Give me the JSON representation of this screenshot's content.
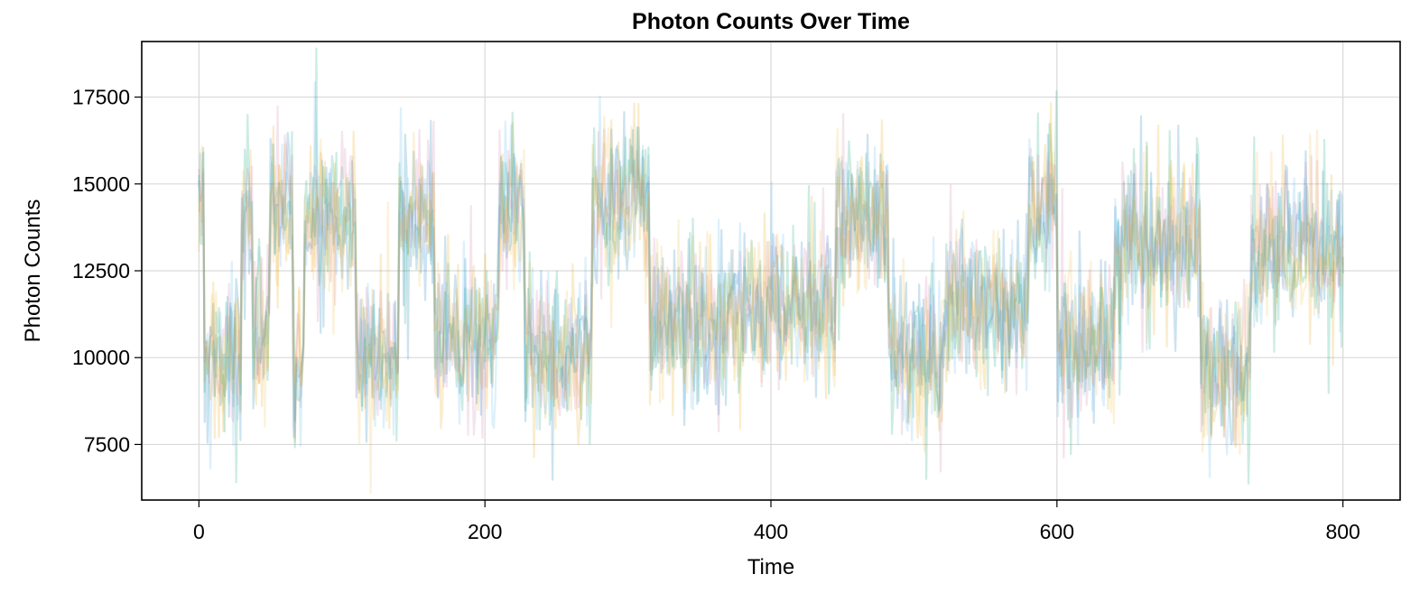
{
  "chart_data": {
    "type": "line",
    "title": "Photon Counts Over Time",
    "xlabel": "Time",
    "ylabel": "Photon Counts",
    "xlim": [
      -40,
      840
    ],
    "ylim": [
      5900,
      19100
    ],
    "xticks": [
      0,
      200,
      400,
      600,
      800
    ],
    "yticks": [
      7500,
      10000,
      12500,
      15000,
      17500
    ],
    "xtick_labels": [
      "0",
      "200",
      "400",
      "600",
      "800"
    ],
    "ytick_labels": [
      "7500",
      "10000",
      "12500",
      "15000",
      "17500"
    ],
    "grid": true,
    "legend": "none",
    "x_range": [
      0,
      800
    ],
    "n_points_per_series": 800,
    "noise_sd": 1150,
    "series_colors": [
      "#0072b2",
      "#e69f00",
      "#009e73",
      "#cc79a7",
      "#56b4e9",
      "#f0b942"
    ],
    "series_count": 6,
    "mean_levels": [
      {
        "start": 0,
        "end": 4,
        "level": 15000
      },
      {
        "start": 4,
        "end": 30,
        "level": 10000
      },
      {
        "start": 30,
        "end": 38,
        "level": 14000
      },
      {
        "start": 38,
        "end": 50,
        "level": 10500
      },
      {
        "start": 50,
        "end": 66,
        "level": 14500
      },
      {
        "start": 66,
        "end": 74,
        "level": 10000
      },
      {
        "start": 74,
        "end": 110,
        "level": 14000
      },
      {
        "start": 110,
        "end": 140,
        "level": 10000
      },
      {
        "start": 140,
        "end": 165,
        "level": 14000
      },
      {
        "start": 165,
        "end": 210,
        "level": 10500
      },
      {
        "start": 210,
        "end": 228,
        "level": 14500
      },
      {
        "start": 228,
        "end": 275,
        "level": 10000
      },
      {
        "start": 275,
        "end": 315,
        "level": 14500
      },
      {
        "start": 315,
        "end": 370,
        "level": 11000
      },
      {
        "start": 370,
        "end": 445,
        "level": 11500
      },
      {
        "start": 445,
        "end": 482,
        "level": 14000
      },
      {
        "start": 482,
        "end": 520,
        "level": 10000
      },
      {
        "start": 520,
        "end": 580,
        "level": 11500
      },
      {
        "start": 580,
        "end": 600,
        "level": 14500
      },
      {
        "start": 600,
        "end": 640,
        "level": 10500
      },
      {
        "start": 640,
        "end": 700,
        "level": 13500
      },
      {
        "start": 700,
        "end": 735,
        "level": 9500
      },
      {
        "start": 735,
        "end": 800,
        "level": 13000
      }
    ]
  }
}
